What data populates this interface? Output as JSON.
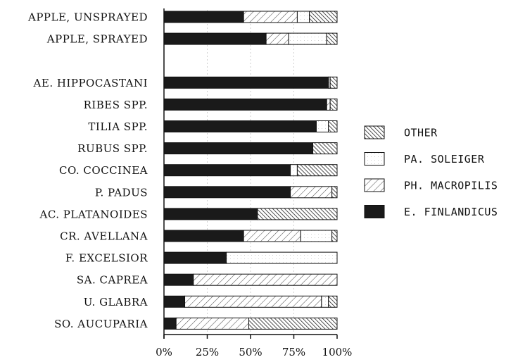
{
  "chart_data": {
    "type": "bar",
    "orientation": "horizontal",
    "stacked": true,
    "categories": [
      "APPLE, UNSPRAYED",
      "APPLE, SPRAYED",
      "",
      "AE. HIPPOCASTANI",
      "RIBES SPP.",
      "TILIA SPP.",
      "RUBUS SPP.",
      "CO. COCCINEA",
      "P. PADUS",
      "AC. PLATANOIDES",
      "CR. AVELLANA",
      "F. EXCELSIOR",
      "SA. CAPREA",
      "U. GLABRA",
      "SO. AUCUPARIA"
    ],
    "series": [
      {
        "name": "E. FINLANDICUS",
        "pattern": "solid",
        "values": [
          46,
          59,
          null,
          95,
          94,
          88,
          86,
          73,
          73,
          54,
          46,
          36,
          17,
          12,
          7
        ]
      },
      {
        "name": "PH. MACROPILIS",
        "pattern": "hatch-light",
        "values": [
          31,
          13,
          null,
          0,
          2,
          0,
          0,
          0,
          24,
          0,
          33,
          0,
          83,
          79,
          42
        ]
      },
      {
        "name": "PA. SOLEIGER",
        "pattern": "dotted",
        "values": [
          7,
          22,
          null,
          1,
          0,
          7,
          0,
          4,
          0,
          0,
          18,
          64,
          0,
          4,
          0
        ]
      },
      {
        "name": "OTHER",
        "pattern": "hatch-dark",
        "values": [
          16,
          6,
          null,
          4,
          4,
          5,
          14,
          23,
          3,
          46,
          3,
          0,
          0,
          5,
          51
        ]
      }
    ],
    "xlim": [
      0,
      100
    ],
    "xticks": [
      "0%",
      "25%",
      "50%",
      "75%",
      "100%"
    ],
    "grid": true,
    "legend_order": [
      "OTHER",
      "PA. SOLEIGER",
      "PH. MACROPILIS",
      "E. FINLANDICUS"
    ],
    "legend_position": "right",
    "colors": {
      "solid": "#1a1a1a",
      "outline": "#111111",
      "background": "#ffffff"
    }
  }
}
